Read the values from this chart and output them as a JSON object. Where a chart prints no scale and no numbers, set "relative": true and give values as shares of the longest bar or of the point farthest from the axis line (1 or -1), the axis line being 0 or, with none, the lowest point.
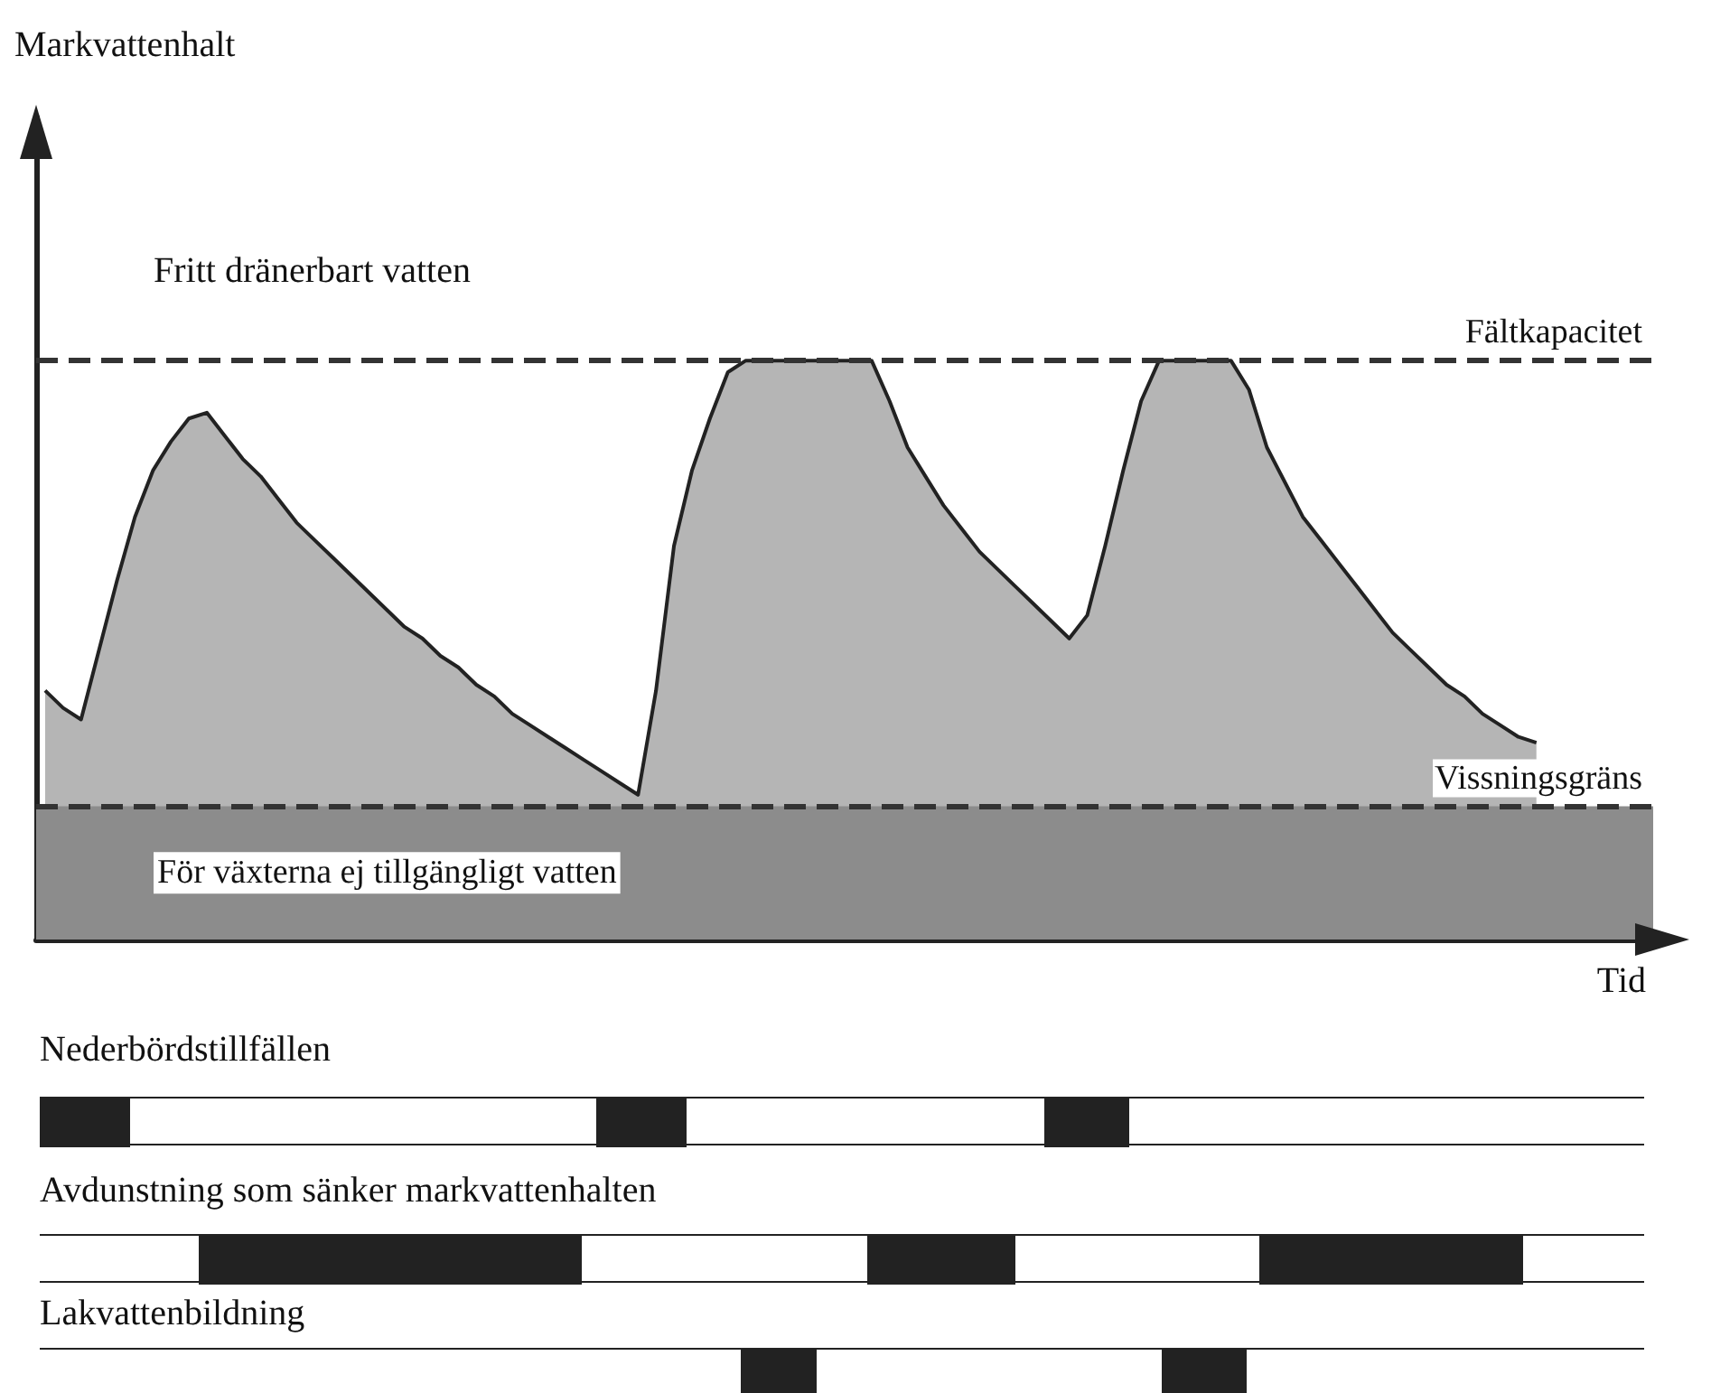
{
  "chart_data": [
    {
      "type": "area",
      "relative": true,
      "ylabel": "Markvattenhalt",
      "xlabel": "Tid",
      "color": "#b5b5b5",
      "annotations": [
        "Fritt dränerbart vatten"
      ],
      "ref_lines": [
        {
          "axis": "y",
          "value": 1,
          "label": "Fältkapacitet",
          "line_style": "dashed",
          "color": "#333333"
        },
        {
          "axis": "y",
          "value": 0.23,
          "label": "Vissningsgräns",
          "line_style": "dashed",
          "color": "#333333"
        }
      ],
      "bands": [
        {
          "axis": "y",
          "from": 0,
          "to": 0.23,
          "label": "För växterna ej tillgängligt vatten",
          "color": "#8c8c8c"
        }
      ],
      "categories": [
        null,
        null,
        null,
        null,
        null,
        null,
        null,
        null,
        null,
        null,
        null,
        null,
        null,
        null,
        null,
        null,
        null,
        null,
        null,
        null,
        null,
        null,
        null,
        null,
        null,
        null,
        null,
        null,
        null,
        null,
        null,
        null,
        null,
        null,
        null,
        null,
        null,
        null,
        null,
        null,
        null,
        null,
        null,
        null,
        null,
        null,
        null,
        null,
        null,
        null,
        null,
        null,
        null,
        null,
        null,
        null,
        null,
        null,
        null,
        null,
        null,
        null,
        null,
        null,
        null,
        null,
        null,
        null,
        null,
        null,
        null,
        null,
        null,
        null,
        null,
        null,
        null,
        null,
        null,
        null,
        null,
        null,
        null,
        null,
        null,
        null,
        null,
        null,
        null,
        null
      ],
      "values": [
        0.43,
        0.4,
        0.38,
        0.5,
        0.62,
        0.73,
        0.81,
        0.86,
        0.9,
        0.91,
        0.87,
        0.83,
        0.8,
        0.76,
        0.72,
        0.69,
        0.66,
        0.63,
        0.6,
        0.57,
        0.54,
        0.52,
        0.49,
        0.47,
        0.44,
        0.42,
        0.39,
        0.37,
        0.35,
        0.33,
        0.31,
        0.29,
        0.27,
        0.25,
        0.43,
        0.68,
        0.81,
        0.9,
        0.98,
        1,
        1,
        1,
        1,
        1,
        1,
        1,
        1,
        0.93,
        0.85,
        0.8,
        0.75,
        0.71,
        0.67,
        0.64,
        0.61,
        0.58,
        0.55,
        0.52,
        0.56,
        0.68,
        0.81,
        0.93,
        1,
        1,
        1,
        1,
        1,
        0.95,
        0.85,
        0.79,
        0.73,
        0.69,
        0.65,
        0.61,
        0.57,
        0.53,
        0.5,
        0.47,
        0.44,
        0.42,
        0.39,
        0.37,
        0.35,
        0.34,
        null,
        null,
        null,
        null,
        null,
        null
      ]
    },
    {
      "type": "other",
      "title": "Nederbördstillfällen"
    },
    {
      "type": "other",
      "title": "Avdunstning som sänker markvattenhalten"
    },
    {
      "type": "other",
      "title": "Lakvattenbildning"
    }
  ]
}
